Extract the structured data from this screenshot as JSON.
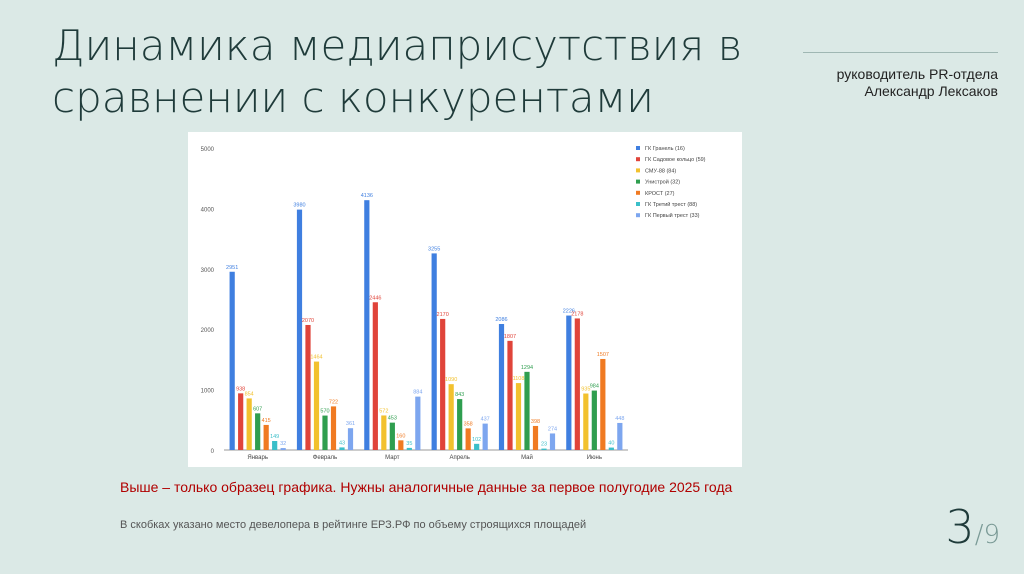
{
  "slide": {
    "title": "Динамика медиаприсутствия в сравнении  с конкурентами",
    "presenter_line1": "руководитель PR-отдела",
    "presenter_line2": "Александр Лексаков",
    "note_red": "Выше – только образец графика. Нужны аналогичные данные за первое полугодие 2025 года",
    "note_gray": "В скобках указано место девелопера в рейтинге ЕРЗ.РФ по объему строящихся площадей",
    "page_current": "3",
    "page_total": "/9"
  },
  "chart_data": {
    "type": "bar",
    "title": "",
    "xlabel": "",
    "ylabel": "",
    "ylim": [
      0,
      5000
    ],
    "yticks": [
      0,
      1000,
      2000,
      3000,
      4000,
      5000
    ],
    "grid": false,
    "legend_position": "top-right",
    "categories": [
      "Январь",
      "Февраль",
      "Март",
      "Апрель",
      "Май",
      "Июнь"
    ],
    "series": [
      {
        "name": "ГК Гранель (16)",
        "color": "#3f7fe0",
        "values": [
          2951,
          3980,
          4136,
          3255,
          2086,
          2226
        ]
      },
      {
        "name": "ГК Садовое кольцо (59)",
        "color": "#e0443a",
        "values": [
          938,
          2070,
          2446,
          2170,
          1807,
          2178
        ]
      },
      {
        "name": "СМУ-88 (84)",
        "color": "#f2c12e",
        "values": [
          854,
          1464,
          572,
          1090,
          1108,
          935
        ]
      },
      {
        "name": "Унистрой (32)",
        "color": "#2f9e4f",
        "values": [
          607,
          570,
          453,
          843,
          1294,
          984
        ]
      },
      {
        "name": "КРОСТ (27)",
        "color": "#f07a22",
        "values": [
          415,
          722,
          160,
          358,
          398,
          1507
        ]
      },
      {
        "name": "ГК Третий трест (88)",
        "color": "#3bbfc9",
        "values": [
          149,
          43,
          35,
          102,
          23,
          40
        ]
      },
      {
        "name": "ГК Первый трест (33)",
        "color": "#7da6ef",
        "values": [
          32,
          361,
          884,
          437,
          274,
          448
        ]
      }
    ]
  }
}
